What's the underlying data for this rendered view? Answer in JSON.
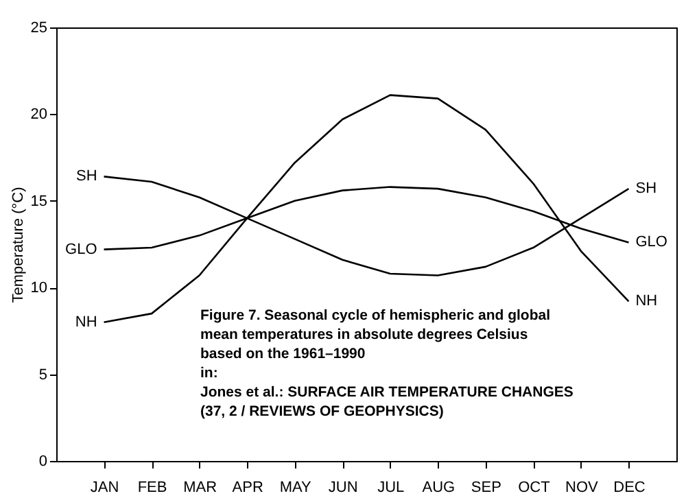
{
  "chart_data": {
    "type": "line",
    "ylabel": "Temperature (°C)",
    "categories": [
      "JAN",
      "FEB",
      "MAR",
      "APR",
      "MAY",
      "JUN",
      "JUL",
      "AUG",
      "SEP",
      "OCT",
      "NOV",
      "DEC"
    ],
    "series": [
      {
        "name": "SH",
        "color": "#000000",
        "values": [
          16.4,
          16.1,
          15.2,
          14.0,
          12.8,
          11.6,
          10.8,
          10.7,
          11.2,
          12.3,
          14.0,
          15.7
        ]
      },
      {
        "name": "GLO",
        "color": "#000000",
        "values": [
          12.2,
          12.3,
          13.0,
          14.0,
          15.0,
          15.6,
          15.8,
          15.7,
          15.2,
          14.4,
          13.4,
          12.6
        ]
      },
      {
        "name": "NH",
        "color": "#000000",
        "values": [
          8.0,
          8.5,
          10.7,
          14.0,
          17.2,
          19.7,
          21.1,
          20.9,
          19.1,
          16.0,
          12.1,
          9.2
        ]
      }
    ],
    "ylim": [
      0,
      25
    ],
    "yticks": [
      0,
      5,
      10,
      15,
      20,
      25
    ],
    "grid": false,
    "legend": false,
    "marker": "none",
    "line_style": "solid",
    "annotations": [
      "Figure 7. Seasonal cycle of hemispheric and global\nmean temperatures in absolute degrees Celsius\nbased on the 1961–1990\nin:\nJones et al.: SURFACE AIR TEMPERATURE CHANGES\n(37, 2 / REVIEWS OF GEOPHYSICS)"
    ]
  }
}
